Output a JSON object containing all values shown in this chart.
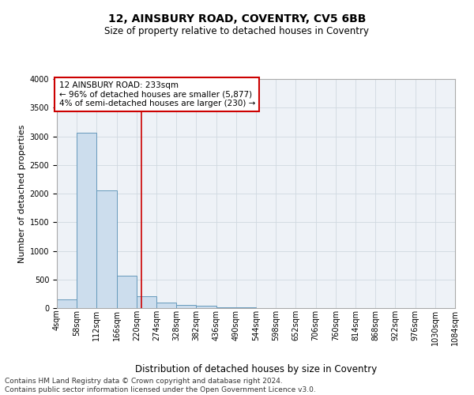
{
  "title": "12, AINSBURY ROAD, COVENTRY, CV5 6BB",
  "subtitle": "Size of property relative to detached houses in Coventry",
  "xlabel": "Distribution of detached houses by size in Coventry",
  "ylabel": "Number of detached properties",
  "bar_color": "#ccdded",
  "bar_edge_color": "#6699bb",
  "grid_color": "#d0d8e0",
  "bg_color": "#eef2f7",
  "property_size_bin": 4,
  "property_line_color": "#cc0000",
  "annotation_line1": "12 AINSBURY ROAD: 233sqm",
  "annotation_line2": "← 96% of detached houses are smaller (5,877)",
  "annotation_line3": "4% of semi-detached houses are larger (230) →",
  "annotation_box_color": "#cc0000",
  "footer_line1": "Contains HM Land Registry data © Crown copyright and database right 2024.",
  "footer_line2": "Contains public sector information licensed under the Open Government Licence v3.0.",
  "ylim": [
    0,
    4000
  ],
  "bin_edges": [
    4,
    58,
    112,
    166,
    220,
    274,
    328,
    382,
    436,
    490,
    544,
    598,
    652,
    706,
    760,
    814,
    868,
    922,
    976,
    1030,
    1084
  ],
  "bin_labels": [
    "4sqm",
    "58sqm",
    "112sqm",
    "166sqm",
    "220sqm",
    "274sqm",
    "328sqm",
    "382sqm",
    "436sqm",
    "490sqm",
    "544sqm",
    "598sqm",
    "652sqm",
    "706sqm",
    "760sqm",
    "814sqm",
    "868sqm",
    "922sqm",
    "976sqm",
    "1030sqm",
    "1084sqm"
  ],
  "bar_heights": [
    150,
    3060,
    2060,
    560,
    210,
    90,
    55,
    35,
    20,
    10,
    5,
    2,
    1,
    0,
    0,
    0,
    0,
    0,
    0,
    0
  ],
  "property_sqm": 233,
  "title_fontsize": 10,
  "subtitle_fontsize": 8.5,
  "ylabel_fontsize": 8,
  "xlabel_fontsize": 8.5,
  "tick_fontsize": 7,
  "footer_fontsize": 6.5,
  "annot_fontsize": 7.5
}
